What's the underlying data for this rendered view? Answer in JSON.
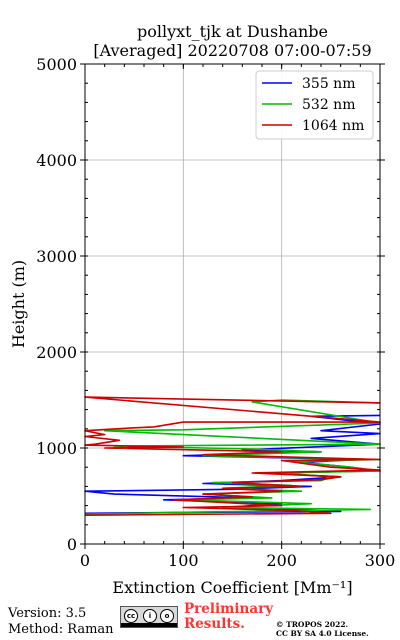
{
  "chart_data": {
    "type": "line",
    "title": "pollyxt_tjk at Dushanbe",
    "subtitle": "[Averaged] 20220708 07:00-07:59",
    "xlabel": "Extinction Coefficient [Mm⁻¹]",
    "ylabel": "Height (m)",
    "xlim": [
      0,
      300
    ],
    "ylim": [
      0,
      5000
    ],
    "xticks": [
      "0",
      "100",
      "200",
      "300"
    ],
    "yticks": [
      "0",
      "1000",
      "2000",
      "3000",
      "4000",
      "5000"
    ],
    "grid": true,
    "legend_position": "top-right",
    "series": [
      {
        "name": "355 nm",
        "color": "#0000ff",
        "points": [
          [
            0,
            320
          ],
          [
            120,
            330
          ],
          [
            260,
            340
          ],
          [
            140,
            380
          ],
          [
            200,
            420
          ],
          [
            80,
            460
          ],
          [
            170,
            480
          ],
          [
            30,
            520
          ],
          [
            0,
            550
          ],
          [
            150,
            570
          ],
          [
            230,
            600
          ],
          [
            120,
            630
          ],
          [
            200,
            660
          ],
          [
            260,
            700
          ],
          [
            180,
            740
          ],
          [
            300,
            760
          ],
          [
            270,
            800
          ],
          [
            220,
            850
          ],
          [
            280,
            880
          ],
          [
            100,
            920
          ],
          [
            240,
            960
          ],
          [
            160,
            980
          ],
          [
            300,
            1040
          ],
          [
            230,
            1100
          ],
          [
            300,
            1150
          ],
          [
            240,
            1180
          ],
          [
            300,
            1250
          ],
          [
            230,
            1330
          ],
          [
            300,
            1340
          ]
        ]
      },
      {
        "name": "532 nm",
        "color": "#00bb00",
        "points": [
          [
            0,
            310
          ],
          [
            100,
            330
          ],
          [
            290,
            360
          ],
          [
            140,
            380
          ],
          [
            230,
            420
          ],
          [
            100,
            460
          ],
          [
            190,
            480
          ],
          [
            120,
            520
          ],
          [
            220,
            550
          ],
          [
            140,
            580
          ],
          [
            210,
            610
          ],
          [
            130,
            640
          ],
          [
            240,
            660
          ],
          [
            250,
            700
          ],
          [
            200,
            740
          ],
          [
            300,
            760
          ],
          [
            270,
            800
          ],
          [
            210,
            860
          ],
          [
            300,
            880
          ],
          [
            120,
            920
          ],
          [
            240,
            960
          ],
          [
            170,
            990
          ],
          [
            30,
            1020
          ],
          [
            300,
            1040
          ],
          [
            20,
            1180
          ],
          [
            100,
            1190
          ],
          [
            300,
            1260
          ],
          [
            170,
            1480
          ],
          [
            200,
            1500
          ],
          [
            300,
            1470
          ]
        ]
      },
      {
        "name": "1064 nm",
        "color": "#cc0000",
        "points": [
          [
            0,
            300
          ],
          [
            250,
            320
          ],
          [
            210,
            350
          ],
          [
            100,
            380
          ],
          [
            200,
            400
          ],
          [
            90,
            460
          ],
          [
            170,
            490
          ],
          [
            120,
            520
          ],
          [
            200,
            550
          ],
          [
            140,
            580
          ],
          [
            220,
            600
          ],
          [
            150,
            640
          ],
          [
            240,
            670
          ],
          [
            260,
            700
          ],
          [
            170,
            740
          ],
          [
            300,
            770
          ],
          [
            250,
            800
          ],
          [
            200,
            870
          ],
          [
            300,
            880
          ],
          [
            120,
            930
          ],
          [
            200,
            960
          ],
          [
            20,
            1000
          ],
          [
            100,
            1010
          ],
          [
            0,
            1030
          ],
          [
            10,
            1040
          ],
          [
            35,
            1080
          ],
          [
            0,
            1120
          ],
          [
            20,
            1140
          ],
          [
            0,
            1180
          ],
          [
            50,
            1210
          ],
          [
            70,
            1220
          ],
          [
            100,
            1270
          ],
          [
            300,
            1270
          ],
          [
            0,
            1530
          ],
          [
            300,
            1470
          ]
        ]
      }
    ]
  },
  "footer": {
    "version": "Version: 3.5",
    "method": "Method: Raman",
    "preliminary_1": "Preliminary",
    "preliminary_2": "Results.",
    "copyright_1": "© TROPOS 2022.",
    "copyright_2": "CC BY SA 4.0 License."
  }
}
